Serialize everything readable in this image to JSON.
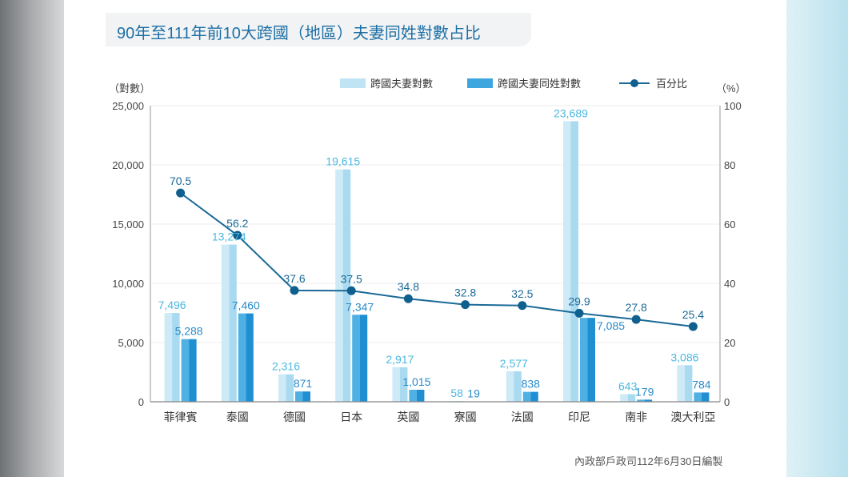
{
  "chart_data": {
    "type": "bar",
    "title": "90年至111年前10大跨國（地區）夫妻同姓對數占比",
    "ylabel": "（對數）",
    "y2label": "（%）",
    "ylim": [
      0,
      25000
    ],
    "y2lim": [
      0,
      100
    ],
    "yticks": [
      "0",
      "5,000",
      "10,000",
      "15,000",
      "20,000",
      "25,000"
    ],
    "y2ticks": [
      "0",
      "20",
      "40",
      "60",
      "80",
      "100"
    ],
    "grid": true,
    "legend_placement": "top-right",
    "categories": [
      "菲律賓",
      "泰國",
      "德國",
      "日本",
      "英國",
      "寮國",
      "法國",
      "印尼",
      "南非",
      "澳大利亞"
    ],
    "series": [
      {
        "name": "跨國夫妻對數",
        "kind": "bar",
        "axis": "left",
        "color": "#bfe4f3",
        "values": [
          7496,
          13274,
          2316,
          19615,
          2917,
          58,
          2577,
          23689,
          643,
          3086
        ],
        "labels": [
          "7,496",
          "13,274",
          "2,316",
          "19,615",
          "2,917",
          "58",
          "2,577",
          "23,689",
          "643",
          "3,086"
        ]
      },
      {
        "name": "跨國夫妻同姓對數",
        "kind": "bar",
        "axis": "left",
        "color": "#3ea6de",
        "values": [
          5288,
          7460,
          871,
          7347,
          1015,
          19,
          838,
          7085,
          179,
          784
        ],
        "labels": [
          "5,288",
          "7,460",
          "871",
          "7,347",
          "1,015",
          "19",
          "838",
          "7,085",
          "179",
          "784"
        ]
      },
      {
        "name": "百分比",
        "kind": "line",
        "axis": "right",
        "color": "#1b6a97",
        "values": [
          70.5,
          56.2,
          37.6,
          37.5,
          34.8,
          32.8,
          32.5,
          29.9,
          27.8,
          25.4
        ],
        "labels": [
          "70.5",
          "56.2",
          "37.6",
          "37.5",
          "34.8",
          "32.8",
          "32.5",
          "29.9",
          "27.8",
          "25.4"
        ]
      }
    ],
    "source": "內政部戶政司112年6月30日編製"
  }
}
